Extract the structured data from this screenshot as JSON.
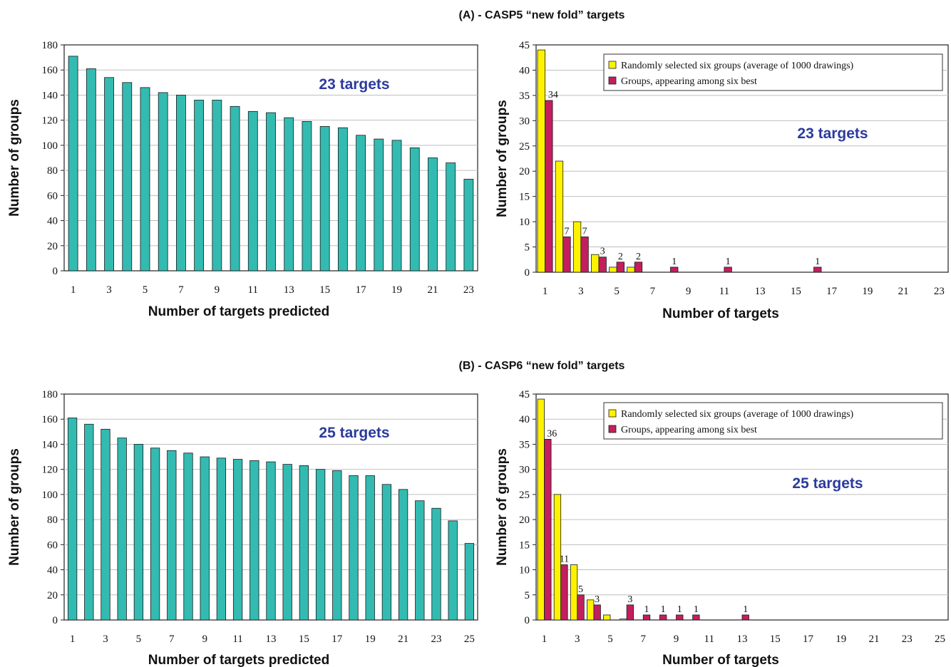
{
  "colors": {
    "teal": "#33BBB2",
    "yellow": "#FFF200",
    "magenta": "#C41E5F",
    "annotation": "#2B3A9E",
    "grid": "#BFBFBF"
  },
  "titles": {
    "a": "(A)  -  CASP5 “new fold” targets",
    "b": "(B)  -  CASP6 “new fold” targets"
  },
  "chart_data": [
    {
      "type": "bar",
      "panel": "A-left",
      "annotation": "23 targets",
      "xlabel": "Number of targets predicted",
      "ylabel": "Number of groups",
      "ylim": [
        0,
        180
      ],
      "yticks": [
        0,
        20,
        40,
        60,
        80,
        100,
        120,
        140,
        160,
        180
      ],
      "xticks": [
        1,
        3,
        5,
        7,
        9,
        11,
        13,
        15,
        17,
        19,
        21,
        23
      ],
      "grid": true,
      "categories": [
        1,
        2,
        3,
        4,
        5,
        6,
        7,
        8,
        9,
        10,
        11,
        12,
        13,
        14,
        15,
        16,
        17,
        18,
        19,
        20,
        21,
        22,
        23
      ],
      "series": [
        {
          "values": [
            171,
            161,
            154,
            150,
            146,
            142,
            140,
            136,
            136,
            131,
            127,
            126,
            122,
            119,
            115,
            114,
            108,
            105,
            104,
            98,
            90,
            86,
            73
          ]
        }
      ]
    },
    {
      "type": "bar",
      "panel": "A-right",
      "annotation": "23 targets",
      "xlabel": "Number of targets",
      "ylabel": "Number of groups",
      "ylim": [
        0,
        45
      ],
      "yticks": [
        0,
        5,
        10,
        15,
        20,
        25,
        30,
        35,
        40,
        45
      ],
      "xticks": [
        1,
        3,
        5,
        7,
        9,
        11,
        13,
        15,
        17,
        19,
        21,
        23
      ],
      "grid": true,
      "legend_position": "top-right",
      "categories": [
        1,
        2,
        3,
        4,
        5,
        6,
        7,
        8,
        9,
        10,
        11,
        12,
        13,
        14,
        15,
        16,
        17,
        18,
        19,
        20,
        21,
        22,
        23
      ],
      "series": [
        {
          "name": "Randomly selected six groups (average of 1000 drawings)",
          "values": [
            44,
            22,
            10,
            3.5,
            1,
            1,
            0,
            0,
            0,
            0,
            0,
            0,
            0,
            0,
            0,
            0,
            0,
            0,
            0,
            0,
            0,
            0,
            0
          ]
        },
        {
          "name": "Groups, appearing among six best",
          "values": [
            34,
            7,
            7,
            3,
            2,
            2,
            0,
            1,
            0,
            0,
            1,
            0,
            0,
            0,
            0,
            1,
            0,
            0,
            0,
            0,
            0,
            0,
            0
          ],
          "data_labels": {
            "1": "34",
            "2": "7",
            "3": "7",
            "4": "3",
            "5": "2",
            "6": "2",
            "8": "1",
            "11": "1",
            "16": "1"
          }
        }
      ]
    },
    {
      "type": "bar",
      "panel": "B-left",
      "annotation": "25 targets",
      "xlabel": "Number of targets predicted",
      "ylabel": "Number of groups",
      "ylim": [
        0,
        180
      ],
      "yticks": [
        0,
        20,
        40,
        60,
        80,
        100,
        120,
        140,
        160,
        180
      ],
      "xticks": [
        1,
        3,
        5,
        7,
        9,
        11,
        13,
        15,
        17,
        19,
        21,
        23,
        25
      ],
      "grid": true,
      "categories": [
        1,
        2,
        3,
        4,
        5,
        6,
        7,
        8,
        9,
        10,
        11,
        12,
        13,
        14,
        15,
        16,
        17,
        18,
        19,
        20,
        21,
        22,
        23,
        24,
        25
      ],
      "series": [
        {
          "values": [
            161,
            156,
            152,
            145,
            140,
            137,
            135,
            133,
            130,
            129,
            128,
            127,
            126,
            124,
            123,
            120,
            119,
            115,
            115,
            108,
            104,
            95,
            89,
            79,
            61
          ]
        }
      ]
    },
    {
      "type": "bar",
      "panel": "B-right",
      "annotation": "25 targets",
      "xlabel": "Number of targets",
      "ylabel": "Number of groups",
      "ylim": [
        0,
        45
      ],
      "yticks": [
        0,
        5,
        10,
        15,
        20,
        25,
        30,
        35,
        40,
        45
      ],
      "xticks": [
        1,
        3,
        5,
        7,
        9,
        11,
        13,
        15,
        17,
        19,
        21,
        23,
        25
      ],
      "grid": true,
      "legend_position": "top-right",
      "categories": [
        1,
        2,
        3,
        4,
        5,
        6,
        7,
        8,
        9,
        10,
        11,
        12,
        13,
        14,
        15,
        16,
        17,
        18,
        19,
        20,
        21,
        22,
        23,
        24,
        25
      ],
      "series": [
        {
          "name": "Randomly selected six groups (average of 1000 drawings)",
          "values": [
            44,
            25,
            11,
            4,
            1,
            0.2,
            0,
            0,
            0,
            0,
            0,
            0,
            0,
            0,
            0,
            0,
            0,
            0,
            0,
            0,
            0,
            0,
            0,
            0,
            0
          ]
        },
        {
          "name": "Groups, appearing among six best",
          "values": [
            36,
            11,
            5,
            3,
            0,
            3,
            1,
            1,
            1,
            1,
            0,
            0,
            1,
            0,
            0,
            0,
            0,
            0,
            0,
            0,
            0,
            0,
            0,
            0,
            0
          ],
          "data_labels": {
            "1": "36",
            "2": "11",
            "3": "5",
            "4": "3",
            "6": "3",
            "7": "1",
            "8": "1",
            "9": "1",
            "10": "1",
            "13": "1"
          }
        }
      ]
    }
  ]
}
